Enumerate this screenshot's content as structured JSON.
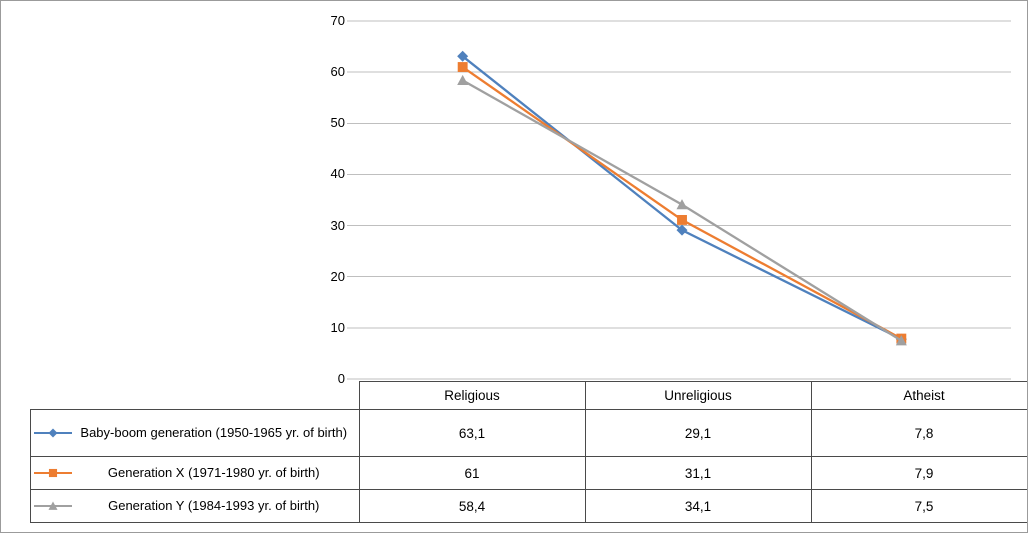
{
  "style": {
    "background": "#ffffff",
    "gridline_color": "#bfbfbf",
    "table_border_color": "#4a4a4a",
    "axis_text_color": "#000000",
    "frame_border_color": "#9b9b9b"
  },
  "chart_data": {
    "type": "line",
    "title": "",
    "xlabel": "",
    "ylabel": "",
    "grid": true,
    "legend_position": "data-table-left",
    "categories": [
      "Religious",
      "Unreligious",
      "Atheist"
    ],
    "ylim": [
      0,
      70
    ],
    "yticks": [
      0,
      10,
      20,
      30,
      40,
      50,
      60,
      70
    ],
    "series": [
      {
        "name": "Baby-boom generation (1950-1965 yr. of birth)",
        "values": [
          63.1,
          29.1,
          7.8
        ],
        "display_values": [
          "63,1",
          "29,1",
          "7,8"
        ],
        "color": "#4f81bd",
        "marker": "diamond"
      },
      {
        "name": "Generation X (1971-1980 yr. of birth)",
        "values": [
          61,
          31.1,
          7.9
        ],
        "display_values": [
          "61",
          "31,1",
          "7,9"
        ],
        "color": "#ed7d31",
        "marker": "square"
      },
      {
        "name": "Generation Y (1984-1993 yr. of birth)",
        "values": [
          58.4,
          34.1,
          7.5
        ],
        "display_values": [
          "58,4",
          "34,1",
          "7,5"
        ],
        "color": "#a0a0a0",
        "marker": "triangle"
      }
    ]
  }
}
